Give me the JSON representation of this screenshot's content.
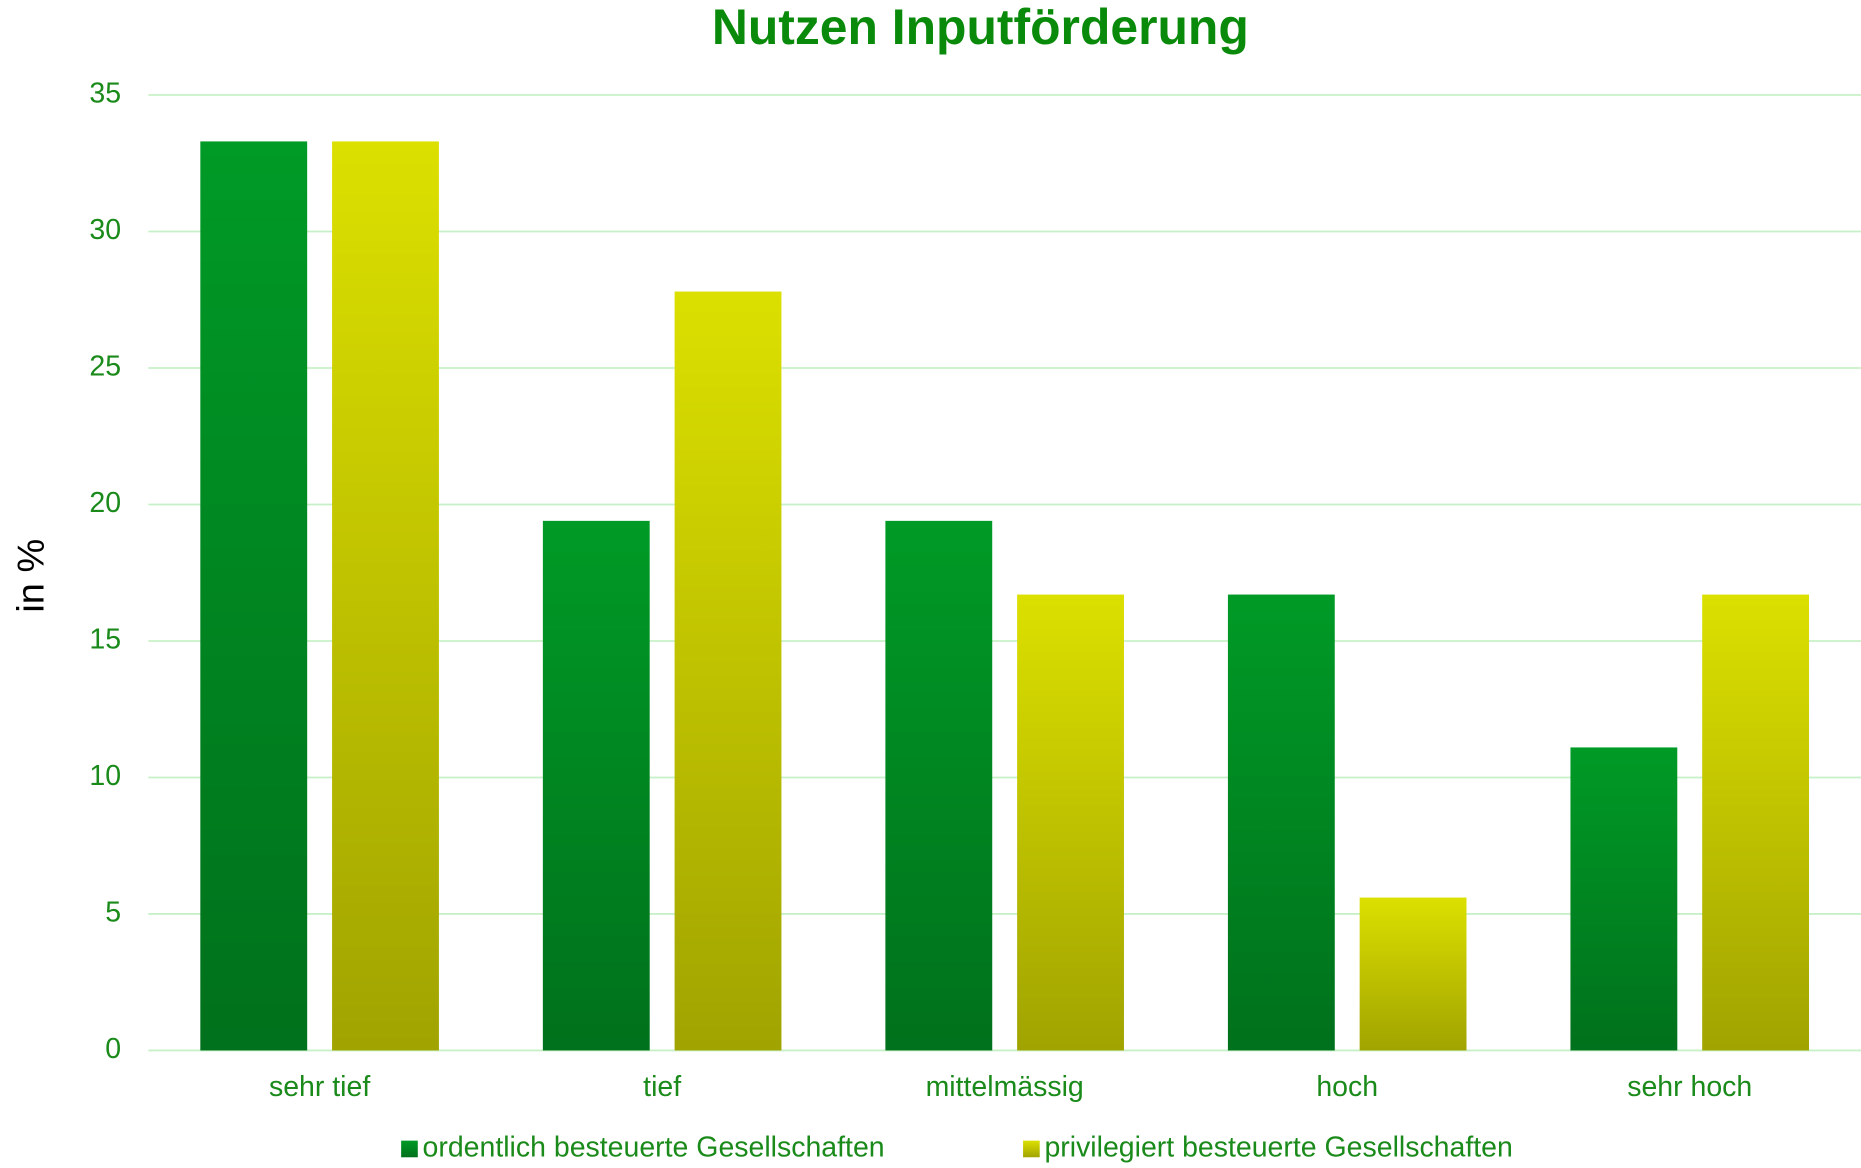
{
  "chart_data": {
    "type": "bar",
    "title": "Nutzen Inputförderung",
    "y_label": "in %",
    "categories": [
      "sehr tief",
      "tief",
      "mittelmässig",
      "hoch",
      "sehr hoch"
    ],
    "series": [
      {
        "name": "ordentlich besteuerte Gesellschaften",
        "color": "#009a26",
        "values": [
          33.3,
          19.4,
          19.4,
          16.7,
          11.1
        ]
      },
      {
        "name": "privilegiert besteuerte Gesellschaften",
        "color": "#dce000",
        "values": [
          33.3,
          27.8,
          16.7,
          5.6,
          16.7
        ]
      }
    ],
    "ylim": [
      0,
      35
    ],
    "yticks": [
      0,
      5,
      10,
      15,
      20,
      25,
      30,
      35
    ],
    "grid": true,
    "legend": "bottom"
  }
}
